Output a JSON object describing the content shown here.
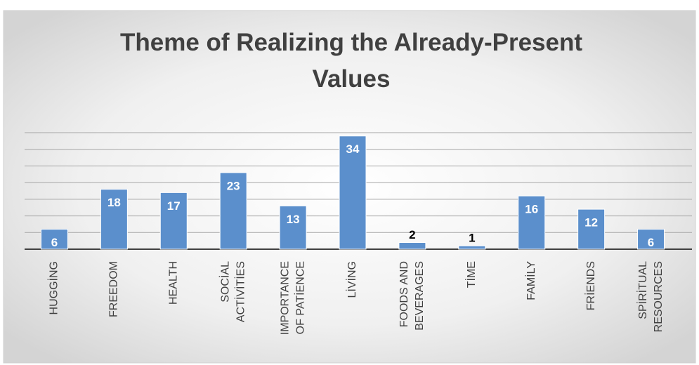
{
  "chart_data": {
    "type": "bar",
    "title": "Theme of Realizing the Already-Present Values",
    "categories": [
      [
        "HUGGİNG"
      ],
      [
        "FREEDOM"
      ],
      [
        "HEALTH"
      ],
      [
        "SOCİAL",
        "ACTİVİTİES"
      ],
      [
        "IMPORTANCE",
        "OF PATİENCE"
      ],
      [
        "LİVİNG"
      ],
      [
        "FOODS AND",
        "BEVERAGES"
      ],
      [
        "TİME"
      ],
      [
        "FAMİLY"
      ],
      [
        "FRİENDS"
      ],
      [
        "SPİRİTUAL",
        "RESOURCES"
      ]
    ],
    "values": [
      6,
      18,
      17,
      23,
      13,
      34,
      2,
      1,
      16,
      12,
      6
    ],
    "color": "#5b8fcc",
    "ylim": [
      0,
      35
    ],
    "yticks": [
      0,
      5,
      10,
      15,
      20,
      25,
      30,
      35
    ],
    "grid": true
  }
}
